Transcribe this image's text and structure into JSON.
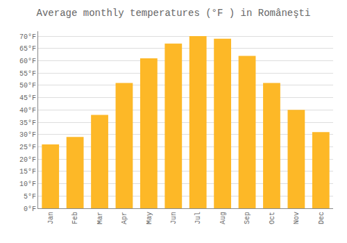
{
  "chart_data": {
    "type": "bar",
    "title": "Average monthly temperatures (°F ) in Româneşti",
    "categories": [
      "Jan",
      "Feb",
      "Mar",
      "Apr",
      "May",
      "Jun",
      "Jul",
      "Aug",
      "Sep",
      "Oct",
      "Nov",
      "Dec"
    ],
    "values": [
      26,
      29,
      38,
      51,
      61,
      67,
      70,
      69,
      62,
      51,
      40,
      31
    ],
    "color": "#FDB827",
    "ylim": [
      0,
      72
    ],
    "yticks": [
      {
        "value": 0,
        "label": "0°F"
      },
      {
        "value": 5,
        "label": "5°F"
      },
      {
        "value": 10,
        "label": "10°F"
      },
      {
        "value": 15,
        "label": "15°F"
      },
      {
        "value": 20,
        "label": "20°F"
      },
      {
        "value": 25,
        "label": "25°F"
      },
      {
        "value": 30,
        "label": "30°F"
      },
      {
        "value": 35,
        "label": "35°F"
      },
      {
        "value": 40,
        "label": "40°F"
      },
      {
        "value": 45,
        "label": "45°F"
      },
      {
        "value": 50,
        "label": "50°F"
      },
      {
        "value": 55,
        "label": "55°F"
      },
      {
        "value": 60,
        "label": "60°F"
      },
      {
        "value": 65,
        "label": "65°F"
      },
      {
        "value": 70,
        "label": "70°F"
      }
    ],
    "grid": true
  }
}
